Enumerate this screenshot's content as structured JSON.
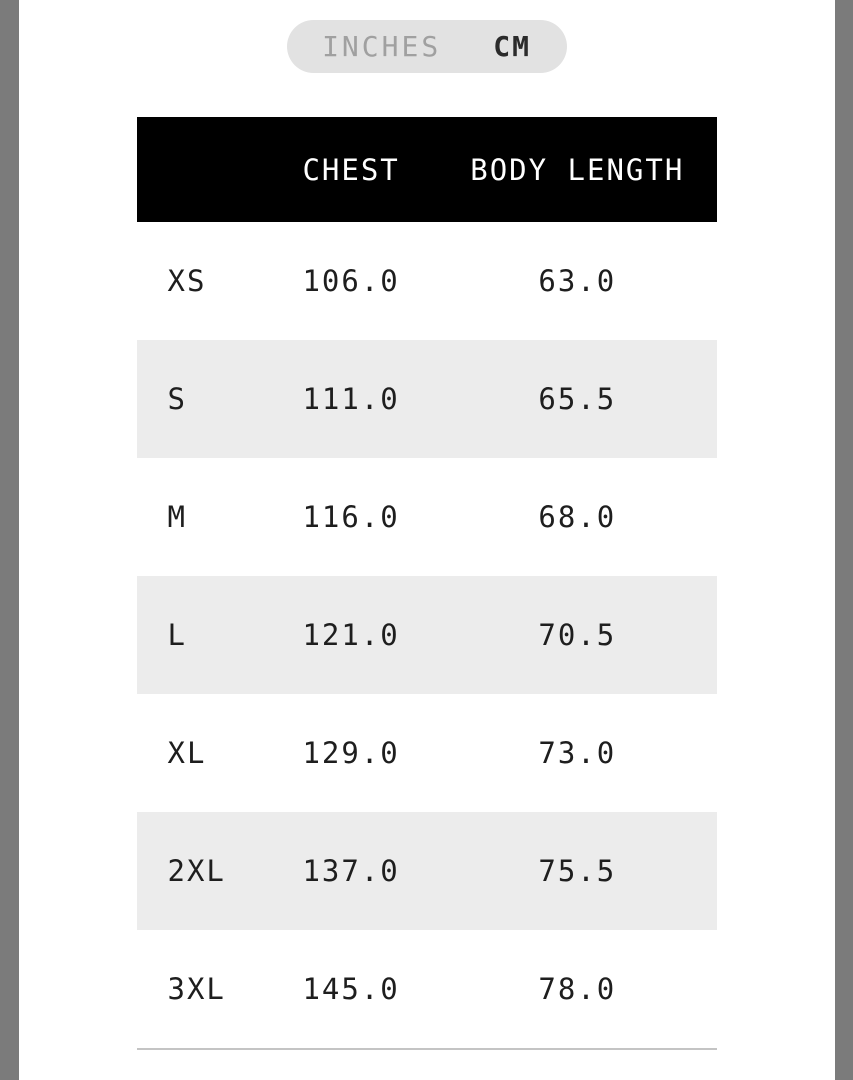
{
  "unit_toggle": {
    "options": [
      {
        "label": "INCHES",
        "active": false
      },
      {
        "label": "CM",
        "active": true
      }
    ]
  },
  "size_chart": {
    "columns": {
      "size": "",
      "chest": "CHEST",
      "body_length": "BODY LENGTH"
    },
    "unit": "CM",
    "rows": [
      {
        "size": "XS",
        "chest": "106.0",
        "body_length": "63.0"
      },
      {
        "size": "S",
        "chest": "111.0",
        "body_length": "65.5"
      },
      {
        "size": "M",
        "chest": "116.0",
        "body_length": "68.0"
      },
      {
        "size": "L",
        "chest": "121.0",
        "body_length": "70.5"
      },
      {
        "size": "XL",
        "chest": "129.0",
        "body_length": "73.0"
      },
      {
        "size": "2XL",
        "chest": "137.0",
        "body_length": "75.5"
      },
      {
        "size": "3XL",
        "chest": "145.0",
        "body_length": "78.0"
      }
    ]
  },
  "colors": {
    "gutter": "#7b7b7b",
    "page_background": "#ffffff",
    "pill_background": "#e2e2e2",
    "inactive_option": "#a0a0a0",
    "active_option": "#2b2b2b",
    "header_background": "#000000",
    "header_text": "#ffffff",
    "alt_row_background": "#ececec",
    "body_text": "#1e1e1e",
    "divider": "#c4c4c4"
  }
}
